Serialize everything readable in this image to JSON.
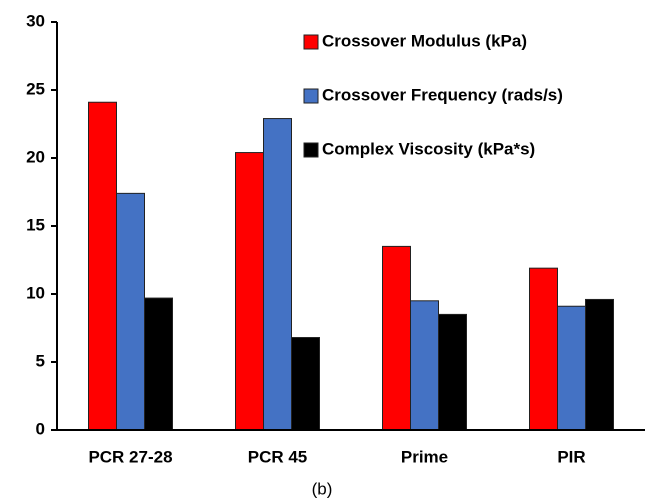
{
  "chart_data": {
    "type": "bar",
    "categories": [
      "PCR 27-28",
      "PCR 45",
      "Prime",
      "PIR"
    ],
    "series": [
      {
        "name": "Crossover Modulus (kPa)",
        "color": "#ff0000",
        "values": [
          24.1,
          20.4,
          13.5,
          11.9
        ]
      },
      {
        "name": "Crossover Frequency (rads/s)",
        "color": "#4472c4",
        "values": [
          17.4,
          22.9,
          9.5,
          9.1
        ]
      },
      {
        "name": "Complex Viscosity (kPa*s)",
        "color": "#000000",
        "values": [
          9.7,
          6.8,
          8.5,
          9.6
        ]
      }
    ],
    "ylim": [
      0,
      30
    ],
    "yticks": [
      0,
      5,
      10,
      15,
      20,
      25,
      30
    ],
    "grid": false,
    "legend": "upper right",
    "caption": "(b)"
  }
}
